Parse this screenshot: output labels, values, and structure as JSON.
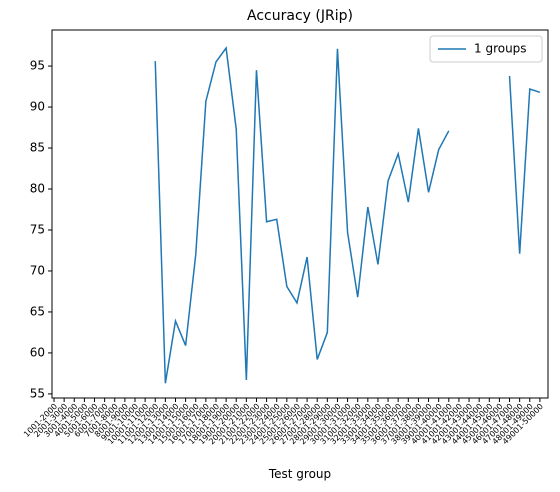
{
  "chart_data": {
    "type": "line",
    "title": "Accuracy (JRip)",
    "x_label": "Test group",
    "categories": [
      "1001-2000",
      "2001-3000",
      "3001-4000",
      "4001-5000",
      "5001-6000",
      "6001-7000",
      "7001-8000",
      "8001-9000",
      "9001-10000",
      "10001-11000",
      "11001-12000",
      "12001-13000",
      "13001-14000",
      "14001-15000",
      "15001-16000",
      "16001-17000",
      "17001-18000",
      "18001-19000",
      "19001-20000",
      "20001-21000",
      "21001-22000",
      "22001-23000",
      "23001-24000",
      "24001-25000",
      "25001-26000",
      "26001-27000",
      "27001-28000",
      "28001-29000",
      "29001-30000",
      "30001-31000",
      "31001-32000",
      "32001-33000",
      "33001-34000",
      "34001-35000",
      "35001-36000",
      "36001-37000",
      "37001-38000",
      "38001-39000",
      "39001-40000",
      "40001-41000",
      "41001-42000",
      "42001-43000",
      "43001-44000",
      "44001-45000",
      "45001-46000",
      "46001-47000",
      "47001-48000",
      "48001-49000",
      "49001-50000"
    ],
    "series": [
      {
        "name": "1 groups",
        "color": "#1f77b4",
        "values": [
          null,
          null,
          null,
          null,
          null,
          null,
          null,
          null,
          null,
          null,
          95.6,
          56.3,
          63.9,
          60.9,
          72.0,
          90.7,
          95.5,
          97.2,
          87.3,
          56.7,
          94.5,
          76.0,
          76.3,
          68.1,
          66.1,
          71.7,
          59.2,
          62.5,
          97.1,
          74.7,
          66.8,
          77.8,
          70.8,
          81.0,
          84.3,
          78.4,
          87.4,
          79.6,
          84.8,
          87.1,
          null,
          null,
          null,
          null,
          null,
          93.8,
          72.1,
          92.2,
          91.8
        ]
      }
    ],
    "ylim": [
      54.5,
      99.4
    ],
    "yticks": [
      55,
      60,
      65,
      70,
      75,
      80,
      85,
      90,
      95
    ],
    "legend": "upper right"
  }
}
